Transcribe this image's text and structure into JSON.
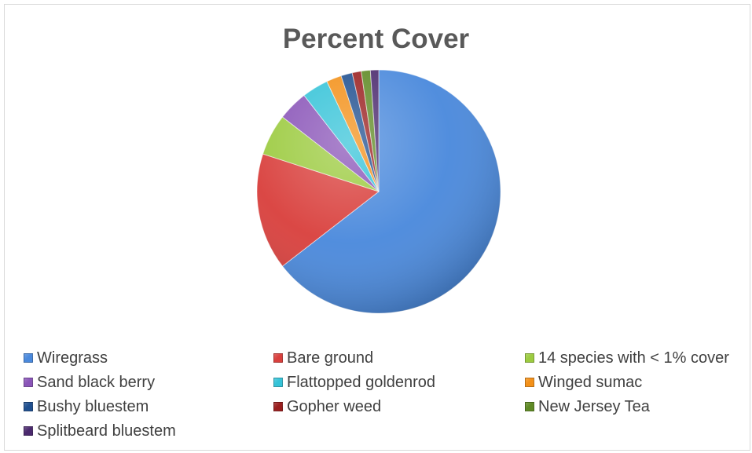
{
  "chart_data": {
    "type": "pie",
    "title": "Percent Cover",
    "legend_position": "bottom",
    "slices": [
      {
        "label": "Wiregrass",
        "value": 64.5,
        "color": "#4a89dc"
      },
      {
        "label": "Bare ground",
        "value": 15.5,
        "color": "#d9403d"
      },
      {
        "label": "14 species with < 1% cover",
        "value": 5.5,
        "color": "#9ccb40"
      },
      {
        "label": "Sand black berry",
        "value": 4.0,
        "color": "#8a55b8"
      },
      {
        "label": "Flattopped goldenrod",
        "value": 3.5,
        "color": "#35c3d8"
      },
      {
        "label": "Winged sumac",
        "value": 2.0,
        "color": "#f39018"
      },
      {
        "label": "Bushy bluestem",
        "value": 1.5,
        "color": "#1f4f8f"
      },
      {
        "label": "Gopher weed",
        "value": 1.2,
        "color": "#9a1f1f"
      },
      {
        "label": "New Jersey Tea",
        "value": 1.2,
        "color": "#5f8a25"
      },
      {
        "label": "Splitbeard bluestem",
        "value": 1.1,
        "color": "#4b2a6e"
      }
    ]
  }
}
